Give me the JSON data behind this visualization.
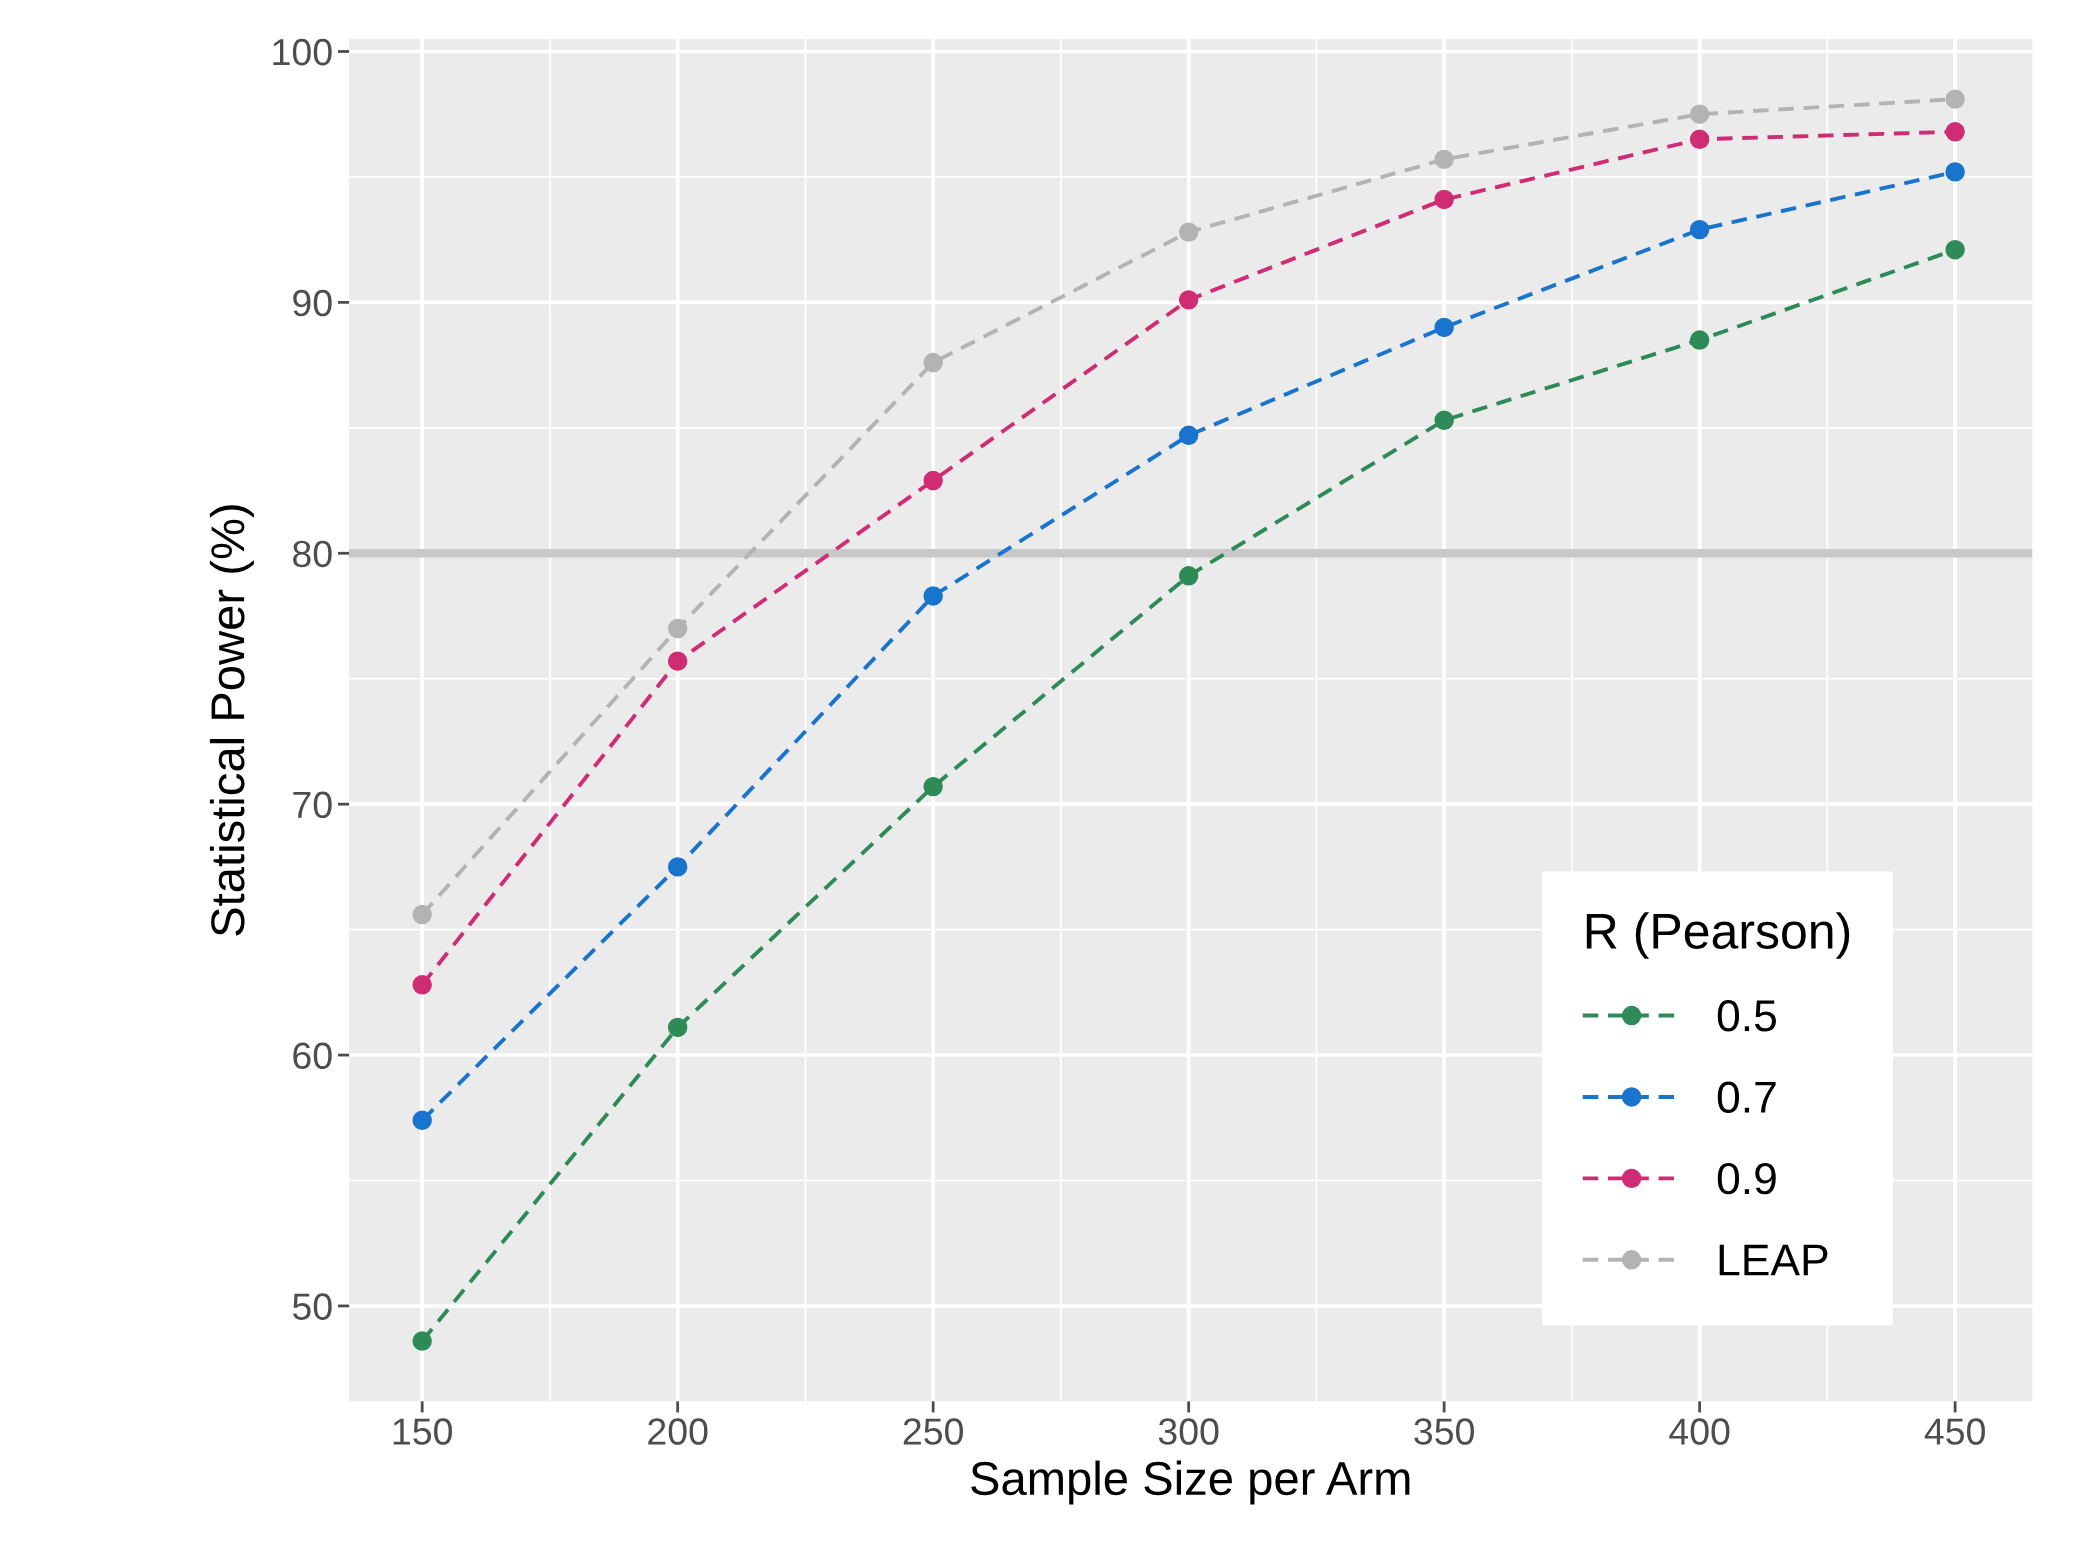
{
  "chart_data": {
    "type": "line",
    "xlabel": "Sample Size per Arm",
    "ylabel": "Statistical Power (%)",
    "legend_title": "R (Pearson)",
    "x": [
      150,
      200,
      250,
      300,
      350,
      400,
      450
    ],
    "series": [
      {
        "name": "0.5",
        "color": "#2e8b57",
        "values": [
          48.6,
          61.1,
          70.7,
          79.1,
          85.3,
          88.5,
          92.1
        ]
      },
      {
        "name": "0.7",
        "color": "#1874cd",
        "values": [
          57.4,
          67.5,
          78.3,
          84.7,
          89.0,
          92.9,
          95.2
        ]
      },
      {
        "name": "0.9",
        "color": "#d02c74",
        "values": [
          62.8,
          75.7,
          82.9,
          90.1,
          94.1,
          96.5,
          96.8
        ]
      },
      {
        "name": "LEAP",
        "color": "#b3b3b3",
        "values": [
          65.6,
          77.0,
          87.6,
          92.8,
          95.7,
          97.5,
          98.1
        ]
      }
    ],
    "xlim": [
      135.7,
      465.1
    ],
    "xticks": [
      150,
      200,
      250,
      300,
      350,
      400,
      450
    ],
    "ylim": [
      46.2,
      100.5
    ],
    "yticks": [
      50,
      60,
      70,
      80,
      90,
      100
    ],
    "ref_lines": [
      {
        "axis": "y",
        "value": 80,
        "color": "#c8c8c8",
        "line_style": "solid"
      }
    ],
    "grid": true,
    "legend": "bottom right",
    "marker": "circle",
    "line_style": "dashed"
  }
}
